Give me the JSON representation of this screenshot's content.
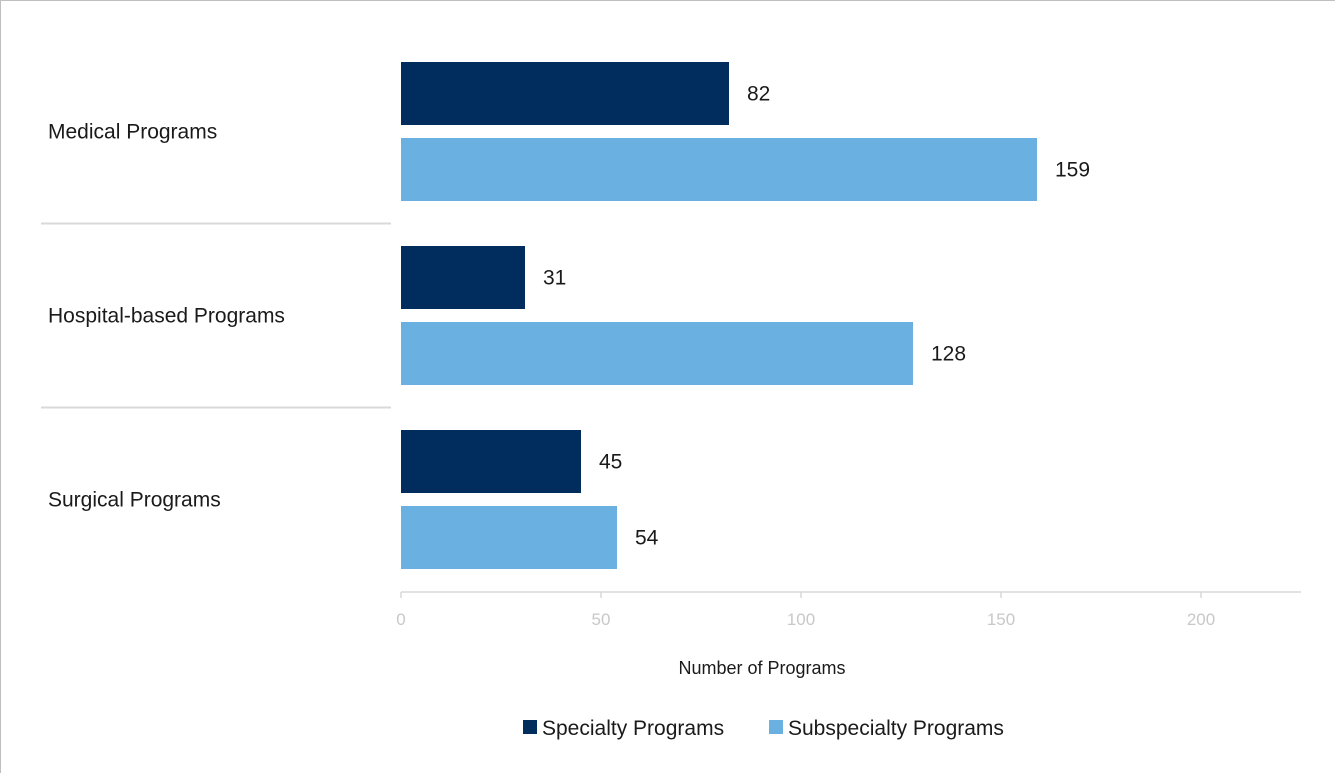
{
  "chart_data": {
    "type": "bar",
    "orientation": "horizontal",
    "categories": [
      "Medical Programs",
      "Hospital-based Programs",
      "Surgical Programs"
    ],
    "series": [
      {
        "name": "Specialty Programs",
        "values": [
          82,
          31,
          45
        ],
        "color": "#002d5e"
      },
      {
        "name": "Subspecialty Programs",
        "values": [
          159,
          128,
          54
        ],
        "color": "#6ab0e0"
      }
    ],
    "xlabel": "Number of Programs",
    "xlim": [
      0,
      225
    ],
    "xticks": [
      0,
      50,
      100,
      150,
      200
    ],
    "grid": false,
    "legend": "bottom",
    "separator_color": "#d9d9d9",
    "axis_color": "#d9d9d9",
    "tick_color": "#c8c8c8"
  }
}
